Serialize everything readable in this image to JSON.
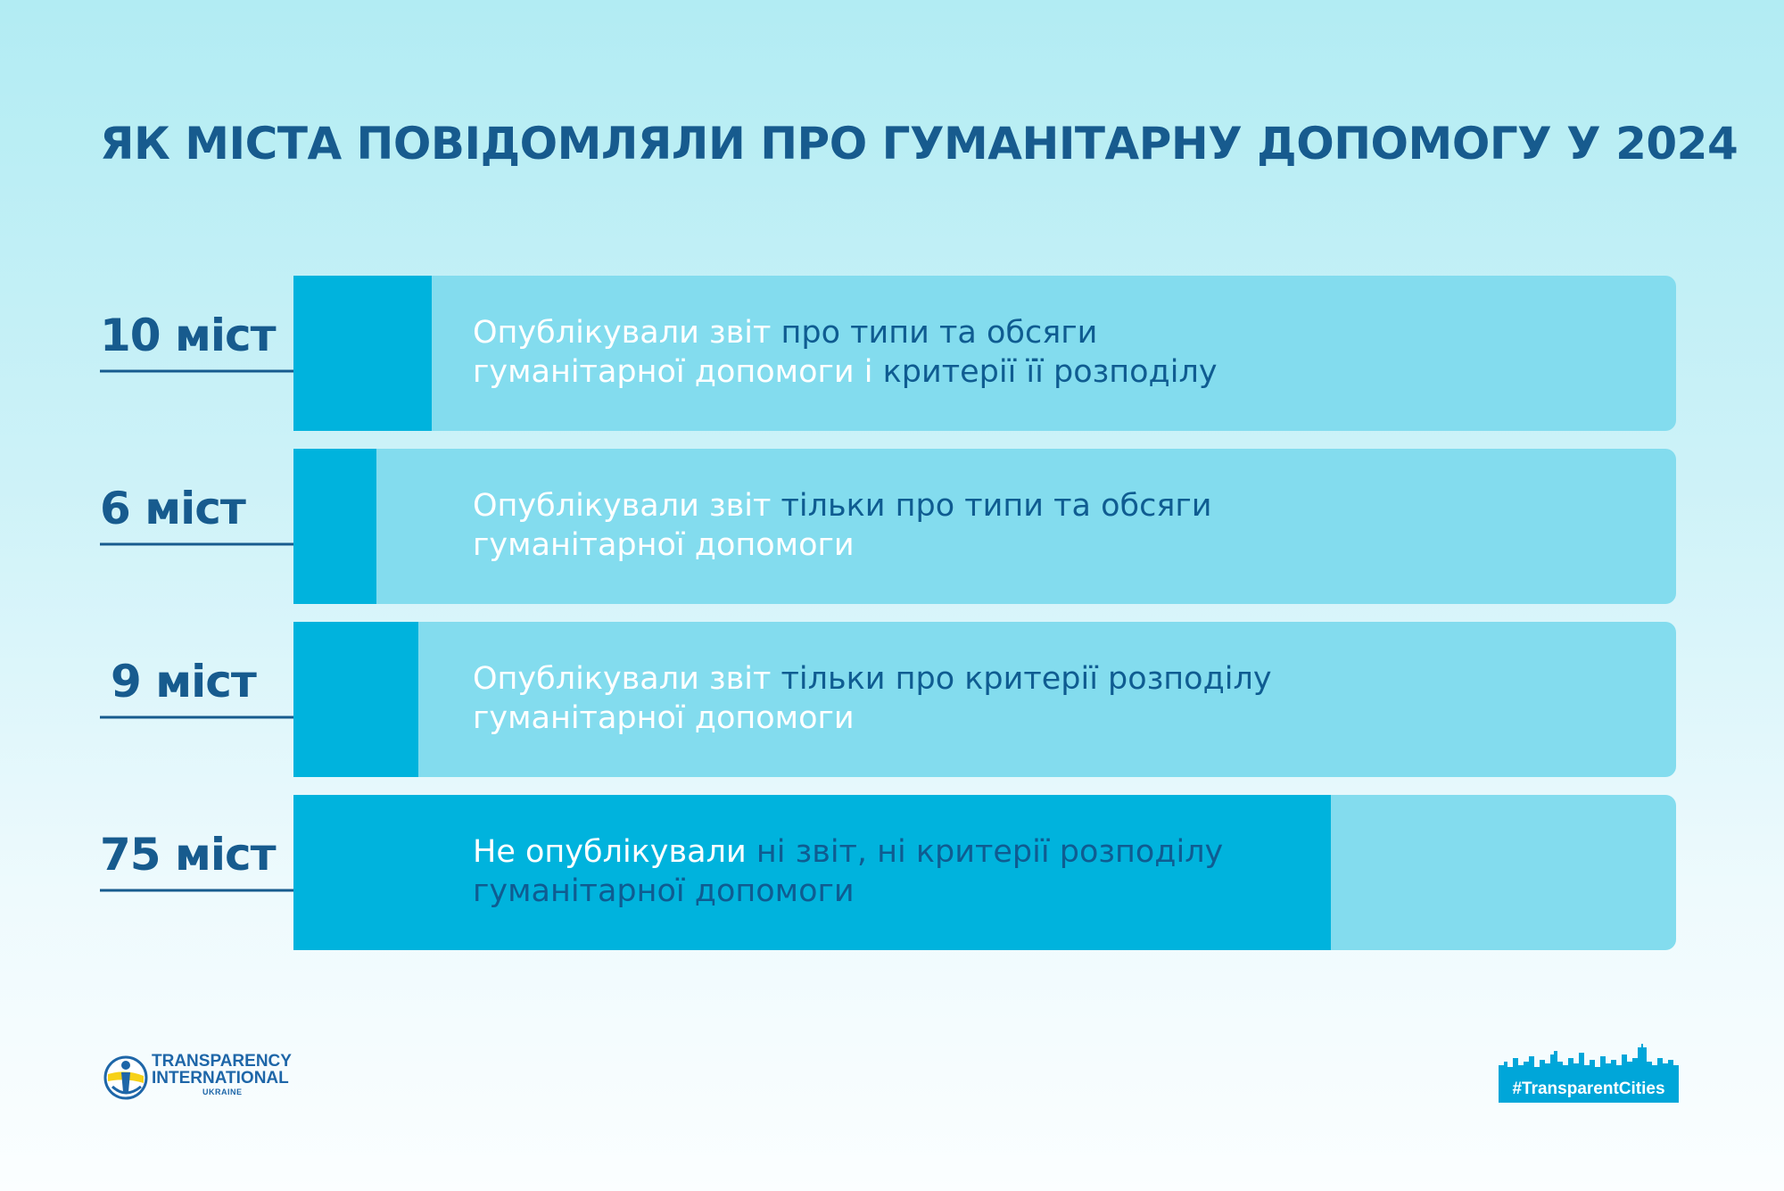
{
  "title": "ЯК МІСТА ПОВІДОМЛЯЛИ ПРО ГУМАНІТАРНУ ДОПОМОГУ У 2024",
  "colors": {
    "title": "#175b8e",
    "bar_fill": "#00b3dd",
    "bar_track": "#83dcee",
    "text_dark": "#0f5c91",
    "text_highlight": "#ffffff"
  },
  "chart_data": {
    "type": "bar",
    "orientation": "horizontal",
    "title": "ЯК МІСТА ПОВІДОМЛЯЛИ ПРО ГУМАНІТАРНУ ДОПОМОГУ У 2024",
    "categories": [
      "Опублікували звіт про типи та обсяги гуманітарної допомоги і критерії  її розподілу",
      "Опублікували звіт тільки про типи та обсяги гуманітарної допомоги",
      "Опублікували звіт тільки про критерії розподілу гуманітарної допомоги",
      "Не опублікували ні звіт, ні критерії розподілу гуманітарної допомоги"
    ],
    "values": [
      10,
      6,
      9,
      75
    ],
    "value_labels": [
      "10 міст",
      "6 міст",
      "9 міст",
      "75 міст"
    ],
    "xlim": [
      0,
      100
    ],
    "grid": false,
    "legend": "none"
  },
  "rows": [
    {
      "count_label": "10 міст",
      "desc_line1_a": "Опублікували звіт",
      "desc_line1_b": " про типи та обсяги",
      "desc_line2_a": "гуманітарної допомоги",
      "desc_line2_b": " і ",
      "desc_line2_c": "критерії  її розподілу"
    },
    {
      "count_label": "6 міст",
      "desc_line1_a": "Опублікували звіт",
      "desc_line1_b": " тільки про типи та обсяги",
      "desc_line2_a": "гуманітарної допомоги"
    },
    {
      "count_label": "9 міст",
      "desc_line1_a": "Опублікували звіт",
      "desc_line1_b": " тільки про критерії розподілу",
      "desc_line2_a": "гуманітарної допомоги"
    },
    {
      "count_label": "75 міст",
      "desc_line1_a": "Не опублікували",
      "desc_line1_b": " ні звіт, ні критерії розподілу",
      "desc_line2_a": "гуманітарної допомоги"
    }
  ],
  "footer": {
    "ti_line1": "TRANSPARENCY",
    "ti_line2": "INTERNATIONAL",
    "ti_line3": "UKRAINE",
    "hashtag": "#TransparentCities",
    "ti_icon": "transparency-international-globe-icon",
    "skyline_icon": "city-skyline-icon"
  }
}
